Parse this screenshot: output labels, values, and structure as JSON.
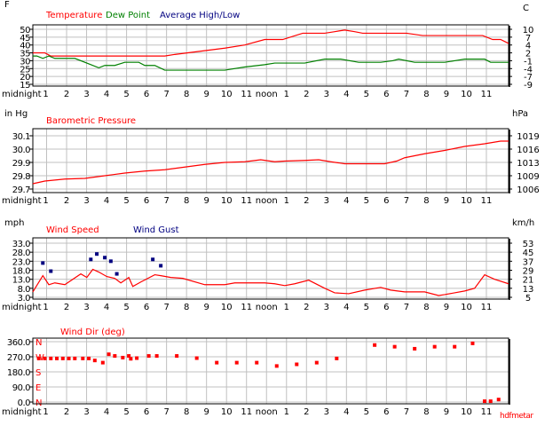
{
  "hour_labels": [
    "midnight",
    "1",
    "2",
    "3",
    "4",
    "5",
    "6",
    "7",
    "8",
    "9",
    "10",
    "11",
    "noon",
    "1",
    "2",
    "3",
    "4",
    "5",
    "6",
    "7",
    "8",
    "9",
    "10",
    "11"
  ],
  "footer_text": "hdfmetar",
  "colors": {
    "red": "#ff0000",
    "green": "#008000",
    "navy": "#000080",
    "grid": "#c0c0c0"
  },
  "chart_data": [
    {
      "type": "line",
      "left_unit": "F",
      "right_unit": "C",
      "ylim": [
        15,
        50
      ],
      "yticks": [
        "50",
        "45",
        "40",
        "35",
        "30",
        "25",
        "20",
        "15"
      ],
      "right_ticks": [
        "10",
        "7",
        "4",
        "2",
        "-1",
        "-4",
        "-7",
        "-9"
      ],
      "grid": true,
      "legend": [
        {
          "name": "Temperature",
          "color": "#ff0000"
        },
        {
          "name": "Dew Point",
          "color": "#008000"
        },
        {
          "name": "Average High/Low",
          "color": "#000080"
        }
      ],
      "series": [
        {
          "name": "Temperature",
          "color": "#ff0000",
          "points": [
            [
              0.4,
              35
            ],
            [
              1,
              35
            ],
            [
              1.3,
              33
            ],
            [
              7,
              33
            ],
            [
              7.5,
              34
            ],
            [
              10,
              38
            ],
            [
              11,
              40
            ],
            [
              12,
              43.5
            ],
            [
              12.9,
              43.5
            ],
            [
              13.9,
              47.5
            ],
            [
              15,
              47.5
            ],
            [
              15.5,
              48.5
            ],
            [
              16,
              49.5
            ],
            [
              16.5,
              48.5
            ],
            [
              16.9,
              47.5
            ],
            [
              19.1,
              47.5
            ],
            [
              19.9,
              46
            ],
            [
              22.9,
              46
            ],
            [
              23.4,
              43.5
            ],
            [
              23.8,
              43.5
            ],
            [
              24.2,
              41
            ]
          ]
        },
        {
          "name": "Dew Point",
          "color": "#008000",
          "points": [
            [
              0.4,
              33
            ],
            [
              0.6,
              33
            ],
            [
              0.9,
              31.5
            ],
            [
              1.2,
              33
            ],
            [
              1.5,
              31.5
            ],
            [
              2.5,
              31.5
            ],
            [
              3.2,
              28
            ],
            [
              3.7,
              25.5
            ],
            [
              4,
              27
            ],
            [
              4.5,
              27
            ],
            [
              5,
              29
            ],
            [
              5.7,
              29
            ],
            [
              6,
              27
            ],
            [
              6.5,
              27
            ],
            [
              7,
              24
            ],
            [
              10,
              24
            ],
            [
              11,
              26
            ],
            [
              12,
              27.5
            ],
            [
              12.5,
              28.5
            ],
            [
              14,
              28.5
            ],
            [
              15,
              31
            ],
            [
              15.8,
              31
            ],
            [
              16.7,
              29
            ],
            [
              17.8,
              29
            ],
            [
              18.4,
              30
            ],
            [
              18.7,
              31
            ],
            [
              19.5,
              29
            ],
            [
              21,
              29
            ],
            [
              21.5,
              30
            ],
            [
              22,
              31
            ],
            [
              23,
              31
            ],
            [
              23.3,
              29
            ],
            [
              24.2,
              29
            ]
          ]
        }
      ]
    },
    {
      "type": "line",
      "left_unit": "in Hg",
      "right_unit": "hPa",
      "ylim": [
        29.7,
        30.15
      ],
      "yticks": [
        "30.1",
        "30.0",
        "29.9",
        "29.8",
        "29.7"
      ],
      "right_ticks": [
        "1019",
        "1016",
        "1013",
        "1009",
        "1006"
      ],
      "grid": true,
      "legend": [
        {
          "name": "Barometric Pressure",
          "color": "#ff0000"
        }
      ],
      "series": [
        {
          "name": "Barometric Pressure",
          "color": "#ff0000",
          "points": [
            [
              0.4,
              29.74
            ],
            [
              1,
              29.76
            ],
            [
              2,
              29.775
            ],
            [
              3,
              29.78
            ],
            [
              4,
              29.8
            ],
            [
              5,
              29.82
            ],
            [
              6,
              29.835
            ],
            [
              7,
              29.845
            ],
            [
              8,
              29.865
            ],
            [
              9,
              29.885
            ],
            [
              10,
              29.9
            ],
            [
              11,
              29.905
            ],
            [
              11.8,
              29.92
            ],
            [
              12.5,
              29.905
            ],
            [
              13,
              29.91
            ],
            [
              14,
              29.915
            ],
            [
              14.7,
              29.92
            ],
            [
              15.3,
              29.905
            ],
            [
              16,
              29.89
            ],
            [
              18,
              29.89
            ],
            [
              18.6,
              29.91
            ],
            [
              19,
              29.935
            ],
            [
              20,
              29.965
            ],
            [
              21,
              29.99
            ],
            [
              22,
              30.02
            ],
            [
              23,
              30.04
            ],
            [
              23.8,
              30.06
            ],
            [
              24.2,
              30.06
            ]
          ]
        }
      ]
    },
    {
      "type": "line",
      "left_unit": "mph",
      "right_unit": "km/h",
      "ylim": [
        3,
        35
      ],
      "yticks": [
        "33.0",
        "28.0",
        "23.0",
        "18.0",
        "13.0",
        "8.0",
        "3.0"
      ],
      "right_ticks": [
        "53",
        "45",
        "37",
        "29",
        "21",
        "13",
        "5"
      ],
      "grid": true,
      "legend": [
        {
          "name": "Wind Speed",
          "color": "#ff0000"
        },
        {
          "name": "Wind Gust",
          "color": "#000080"
        }
      ],
      "series": [
        {
          "name": "Wind Speed",
          "color": "#ff0000",
          "points": [
            [
              0.4,
              6
            ],
            [
              0.9,
              15
            ],
            [
              1.2,
              10
            ],
            [
              1.5,
              11
            ],
            [
              2,
              10
            ],
            [
              2.8,
              16
            ],
            [
              3.1,
              14
            ],
            [
              3.4,
              18.5
            ],
            [
              3.7,
              17
            ],
            [
              4.1,
              14.5
            ],
            [
              4.5,
              13.5
            ],
            [
              4.8,
              11
            ],
            [
              5.2,
              14
            ],
            [
              5.4,
              9
            ],
            [
              5.8,
              11.5
            ],
            [
              6.5,
              15.5
            ],
            [
              6.8,
              15
            ],
            [
              7.3,
              14
            ],
            [
              7.9,
              13.5
            ],
            [
              9,
              10
            ],
            [
              10,
              10
            ],
            [
              10.5,
              11
            ],
            [
              12,
              11
            ],
            [
              12.5,
              10.5
            ],
            [
              13,
              9.5
            ],
            [
              13.5,
              10.5
            ],
            [
              14.2,
              12.5
            ],
            [
              15,
              8
            ],
            [
              15.5,
              5.5
            ],
            [
              16.2,
              5
            ],
            [
              17,
              7
            ],
            [
              17.8,
              8.5
            ],
            [
              18.3,
              7
            ],
            [
              19,
              6
            ],
            [
              20,
              6
            ],
            [
              20.7,
              4
            ],
            [
              21,
              4.5
            ],
            [
              22,
              6.5
            ],
            [
              22.5,
              8
            ],
            [
              23,
              15.5
            ],
            [
              23.5,
              13
            ],
            [
              24.2,
              10.5
            ]
          ]
        },
        {
          "name": "Wind Gust",
          "color": "#000080",
          "marker": true,
          "points": [
            [
              0.9,
              22
            ],
            [
              1.3,
              17.5
            ],
            [
              3.3,
              24
            ],
            [
              3.6,
              27
            ],
            [
              4,
              25
            ],
            [
              4.3,
              23
            ],
            [
              4.6,
              16
            ],
            [
              6.4,
              24
            ],
            [
              6.8,
              20.5
            ]
          ]
        }
      ]
    },
    {
      "type": "scatter",
      "left_unit": "",
      "right_unit": "",
      "ylim": [
        0,
        360
      ],
      "yticks": [
        "360.0",
        "270.0",
        "180.0",
        "90.0",
        "0.0"
      ],
      "compass_ticks": [
        "N",
        "W",
        "S",
        "E",
        "N"
      ],
      "grid": true,
      "legend": [
        {
          "name": "Wind Dir (deg)",
          "color": "#ff0000"
        }
      ],
      "series": [
        {
          "name": "Wind Dir (deg)",
          "color": "#ff0000",
          "marker": true,
          "points": [
            [
              0.7,
              260
            ],
            [
              1,
              260
            ],
            [
              1.3,
              260
            ],
            [
              1.6,
              260
            ],
            [
              1.9,
              260
            ],
            [
              2.2,
              260
            ],
            [
              2.5,
              260
            ],
            [
              2.9,
              260
            ],
            [
              3.2,
              260
            ],
            [
              3.5,
              248
            ],
            [
              3.9,
              235
            ],
            [
              4.2,
              285
            ],
            [
              4.5,
              275
            ],
            [
              4.9,
              265
            ],
            [
              5.2,
              275
            ],
            [
              5.3,
              258
            ],
            [
              5.6,
              262
            ],
            [
              6.2,
              275
            ],
            [
              6.6,
              275
            ],
            [
              7.6,
              275
            ],
            [
              8.6,
              262
            ],
            [
              9.6,
              235
            ],
            [
              10.6,
              235
            ],
            [
              11.6,
              235
            ],
            [
              12.6,
              215
            ],
            [
              13.6,
              225
            ],
            [
              14.6,
              235
            ],
            [
              15.6,
              260
            ],
            [
              17.5,
              340
            ],
            [
              18.5,
              330
            ],
            [
              19.5,
              318
            ],
            [
              20.5,
              330
            ],
            [
              21.5,
              330
            ],
            [
              22.4,
              350
            ],
            [
              23,
              5
            ],
            [
              23.3,
              5
            ],
            [
              23.7,
              15
            ]
          ]
        }
      ]
    }
  ]
}
